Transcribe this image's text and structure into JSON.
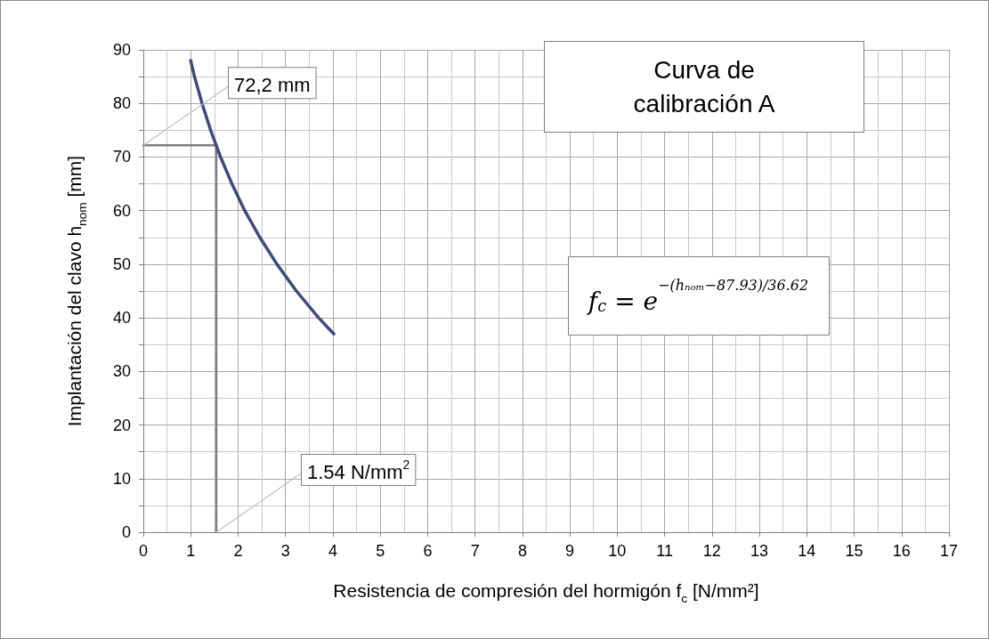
{
  "chart_data": {
    "type": "line",
    "title": "Curva de calibración A",
    "xlabel": "Resistencia de compresión del hormigón f$_{c}$ [N/mm²]",
    "ylabel": "Implantación del clavo h$_{nom}$ [mm]",
    "xlim": [
      0,
      17
    ],
    "xticks": [
      0,
      1,
      2,
      3,
      4,
      5,
      6,
      7,
      8,
      9,
      10,
      11,
      12,
      13,
      14,
      15,
      16,
      17
    ],
    "ylim": [
      0,
      90
    ],
    "yticks": [
      0,
      10,
      20,
      30,
      40,
      50,
      60,
      70,
      80,
      90
    ],
    "grid": true,
    "marker": "none",
    "line_style": "solid",
    "series": [
      {
        "color": "#3d4a7a",
        "x": [
          1.0,
          1.08,
          1.24,
          1.42,
          1.63,
          1.87,
          2.14,
          2.46,
          2.82,
          3.23,
          3.7,
          4.02
        ],
        "values": [
          88,
          85,
          80,
          75,
          70,
          65,
          60,
          55,
          50,
          45,
          40,
          37
        ]
      },
      {
        "type": "line",
        "color": "#7f7f7f",
        "x": [
          0,
          1.54,
          1.54
        ],
        "values": [
          72.2,
          72.2,
          0
        ]
      }
    ],
    "annotations": [
      "f$_{c}$ = e$^{−(hₙₒₘ−87.93)/36.62}$",
      {
        "text": "72,2 mm",
        "x": 0,
        "y": 72.2
      },
      {
        "text": "1.54 N/mm$^{2}$",
        "x": 1.54,
        "y": 0
      }
    ]
  }
}
